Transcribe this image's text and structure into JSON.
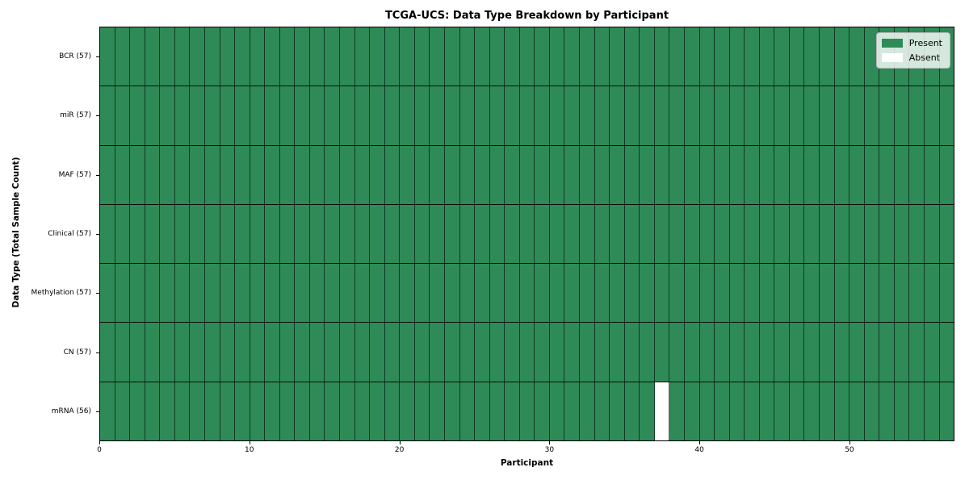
{
  "chart_data": {
    "type": "heatmap",
    "title": "TCGA-UCS: Data Type Breakdown by Participant",
    "xlabel": "Participant",
    "ylabel": "Data Type (Total Sample Count)",
    "n_participants": 57,
    "x_ticks": [
      0,
      10,
      20,
      30,
      40,
      50
    ],
    "rows": [
      {
        "name": "BCR",
        "label": "BCR (57)",
        "total": 57,
        "absent_participants": []
      },
      {
        "name": "miR",
        "label": "miR (57)",
        "total": 57,
        "absent_participants": []
      },
      {
        "name": "MAF",
        "label": "MAF (57)",
        "total": 57,
        "absent_participants": []
      },
      {
        "name": "Clinical",
        "label": "Clinical (57)",
        "total": 57,
        "absent_participants": []
      },
      {
        "name": "Methylation",
        "label": "Methylation (57)",
        "total": 57,
        "absent_participants": []
      },
      {
        "name": "CN",
        "label": "CN (57)",
        "total": 57,
        "absent_participants": []
      },
      {
        "name": "mRNA",
        "label": "mRNA (56)",
        "total": 56,
        "absent_participants": [
          37
        ]
      }
    ],
    "legend": [
      {
        "label": "Present",
        "color": "#2E8B57"
      },
      {
        "label": "Absent",
        "color": "#FFFFFF"
      }
    ],
    "colors": {
      "present": "#2E8B57",
      "absent": "#FFFFFF"
    },
    "legend_position": "upper right",
    "grid": true
  }
}
